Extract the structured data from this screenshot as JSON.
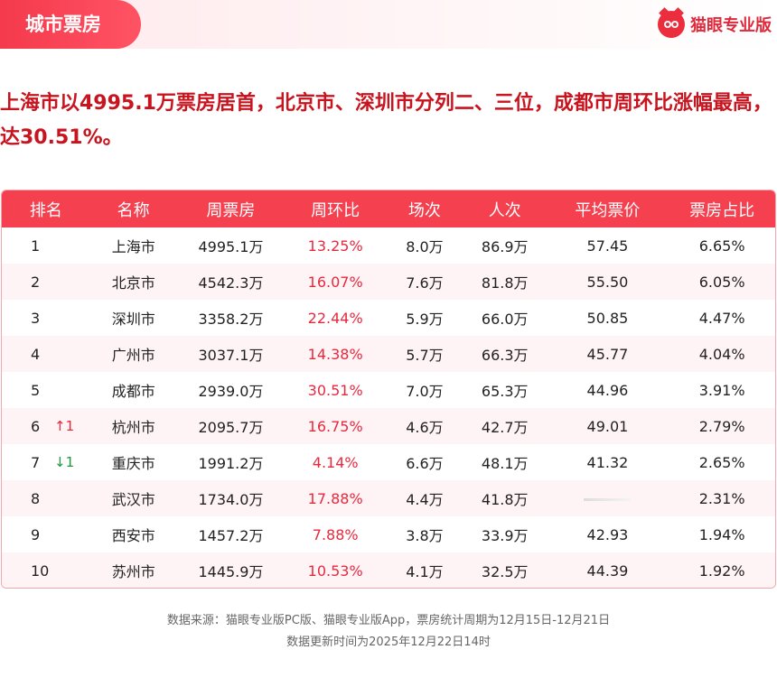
{
  "header": {
    "tag": "城市票房",
    "brand": "猫眼专业版"
  },
  "headline": "上海市以4995.1万票房居首，北京市、深圳市分列二、三位，成都市周环比涨幅最高，达30.51%。",
  "table": {
    "columns": [
      "排名",
      "名称",
      "周票房",
      "周环比",
      "场次",
      "人次",
      "平均票价",
      "票房占比"
    ],
    "rows": [
      {
        "rank": "1",
        "change": "",
        "name": "上海市",
        "weekly": "4995.1万",
        "wow": "13.25%",
        "shows": "8.0万",
        "admissions": "86.9万",
        "avg_price": "57.45",
        "share": "6.65%"
      },
      {
        "rank": "2",
        "change": "",
        "name": "北京市",
        "weekly": "4542.3万",
        "wow": "16.07%",
        "shows": "7.6万",
        "admissions": "81.8万",
        "avg_price": "55.50",
        "share": "6.05%"
      },
      {
        "rank": "3",
        "change": "",
        "name": "深圳市",
        "weekly": "3358.2万",
        "wow": "22.44%",
        "shows": "5.9万",
        "admissions": "66.0万",
        "avg_price": "50.85",
        "share": "4.47%"
      },
      {
        "rank": "4",
        "change": "",
        "name": "广州市",
        "weekly": "3037.1万",
        "wow": "14.38%",
        "shows": "5.7万",
        "admissions": "66.3万",
        "avg_price": "45.77",
        "share": "4.04%"
      },
      {
        "rank": "5",
        "change": "",
        "name": "成都市",
        "weekly": "2939.0万",
        "wow": "30.51%",
        "shows": "7.0万",
        "admissions": "65.3万",
        "avg_price": "44.96",
        "share": "3.91%"
      },
      {
        "rank": "6",
        "change": "↑1",
        "change_dir": "up",
        "name": "杭州市",
        "weekly": "2095.7万",
        "wow": "16.75%",
        "shows": "4.6万",
        "admissions": "42.7万",
        "avg_price": "49.01",
        "share": "2.79%"
      },
      {
        "rank": "7",
        "change": "↓1",
        "change_dir": "down",
        "name": "重庆市",
        "weekly": "1991.2万",
        "wow": "4.14%",
        "shows": "6.6万",
        "admissions": "48.1万",
        "avg_price": "41.32",
        "share": "2.65%"
      },
      {
        "rank": "8",
        "change": "",
        "name": "武汉市",
        "weekly": "1734.0万",
        "wow": "17.88%",
        "shows": "4.4万",
        "admissions": "41.8万",
        "avg_price": "",
        "share": "2.31%"
      },
      {
        "rank": "9",
        "change": "",
        "name": "西安市",
        "weekly": "1457.2万",
        "wow": "7.88%",
        "shows": "3.8万",
        "admissions": "33.9万",
        "avg_price": "42.93",
        "share": "1.94%"
      },
      {
        "rank": "10",
        "change": "",
        "name": "苏州市",
        "weekly": "1445.9万",
        "wow": "10.53%",
        "shows": "4.1万",
        "admissions": "32.5万",
        "avg_price": "44.39",
        "share": "1.92%"
      }
    ]
  },
  "footer": {
    "source": "数据来源：猫眼专业版PC版、猫眼专业版App，票房统计周期为12月15日-12月21日",
    "updated": "数据更新时间为2025年12月22日14时"
  },
  "colors": {
    "accent": "#f4404f",
    "headline": "#c8141e",
    "up": "#e8283d",
    "down": "#1a9a3a"
  }
}
